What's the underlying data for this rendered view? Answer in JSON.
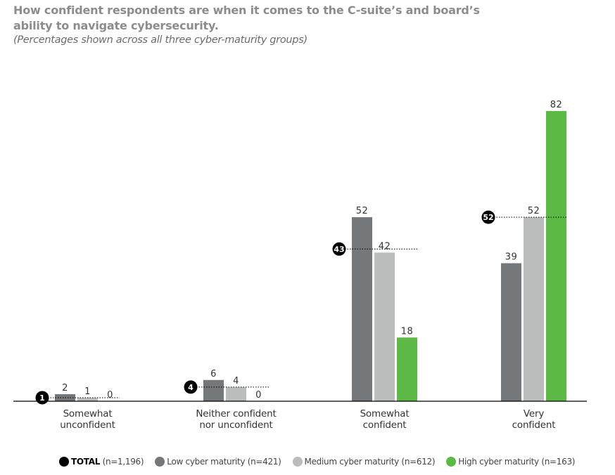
{
  "header": {
    "title": "How confident respondents are when it comes to the C-suite’s and board’s ability to navigate cybersecurity.",
    "subtitle": "(Percentages shown across all three cyber-maturity groups)"
  },
  "colors": {
    "total": "#000000",
    "low": "#75787b",
    "medium": "#bbbcbc",
    "high": "#5cb946",
    "axis": "#000000",
    "label": "#333333"
  },
  "legend": [
    {
      "key": "total",
      "bold": "TOTAL",
      "label": " (n=1,196)"
    },
    {
      "key": "low",
      "bold": "",
      "label": "Low cyber maturity (n=421)"
    },
    {
      "key": "medium",
      "bold": "",
      "label": "Medium cyber maturity (n=612)"
    },
    {
      "key": "high",
      "bold": "",
      "label": "High cyber maturity (n=163)"
    }
  ],
  "chart_data": {
    "type": "bar",
    "title": "How confident respondents are when it comes to the C-suite’s and board’s ability to navigate cybersecurity.",
    "subtitle": "(Percentages shown across all three cyber-maturity groups)",
    "xlabel": "",
    "ylabel": "",
    "ylim": [
      0,
      85
    ],
    "grid": false,
    "legend_position": "bottom",
    "categories": [
      [
        "Somewhat",
        "unconfident"
      ],
      [
        "Neither confident",
        "nor unconfident"
      ],
      [
        "Somewhat",
        "confident"
      ],
      [
        "Very",
        "confident"
      ]
    ],
    "series": [
      {
        "name": "Low cyber maturity (n=421)",
        "key": "low",
        "values": [
          2,
          6,
          52,
          39
        ]
      },
      {
        "name": "Medium cyber maturity (n=612)",
        "key": "medium",
        "values": [
          1,
          4,
          42,
          52
        ]
      },
      {
        "name": "High cyber maturity (n=163)",
        "key": "high",
        "values": [
          0,
          0,
          18,
          82
        ]
      }
    ],
    "total": {
      "name": "TOTAL (n=1,196)",
      "values": [
        1,
        4,
        43,
        52
      ]
    }
  }
}
